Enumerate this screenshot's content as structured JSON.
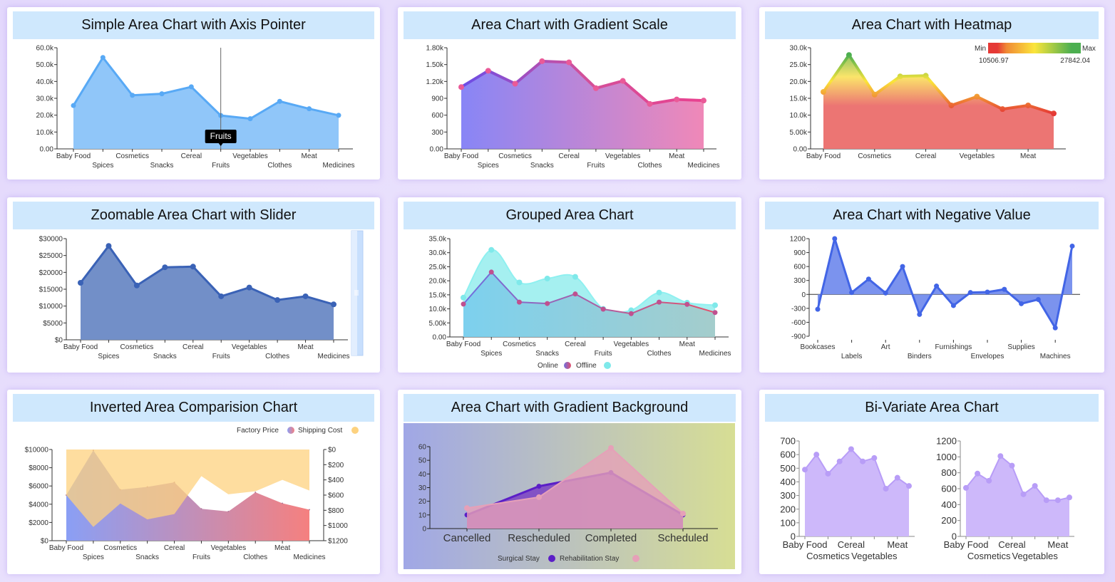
{
  "chart_data": [
    {
      "type": "area",
      "title": "Simple Area Chart with Axis Pointer",
      "categories": [
        "Baby Food",
        "Spices",
        "Cosmetics",
        "Snacks",
        "Cereal",
        "Fruits",
        "Vegetables",
        "Clothes",
        "Meat",
        "Medicines"
      ],
      "ylim": [
        0,
        60000
      ],
      "yticks": [
        "0.00",
        "10.0k",
        "20.0k",
        "30.0k",
        "40.0k",
        "50.0k",
        "60.0k"
      ],
      "series": [
        {
          "values": [
            25700,
            54200,
            31800,
            32700,
            36800,
            19800,
            17900,
            28200,
            23800,
            19900
          ]
        }
      ],
      "tooltip": "Fruits",
      "colors": {
        "fill": "#90c6f9",
        "line": "#58a9f5"
      }
    },
    {
      "type": "area",
      "title": "Area Chart with Gradient Scale",
      "categories": [
        "Baby Food",
        "Spices",
        "Cosmetics",
        "Snacks",
        "Cereal",
        "Fruits",
        "Vegetables",
        "Clothes",
        "Meat",
        "Medicines"
      ],
      "ylim": [
        0,
        1800
      ],
      "yticks": [
        "0.00",
        "300",
        "600",
        "900",
        "1.20k",
        "1.50k",
        "1.80k"
      ],
      "series": [
        {
          "values": [
            1100,
            1390,
            1160,
            1560,
            1540,
            1080,
            1210,
            800,
            880,
            860
          ]
        }
      ],
      "colors": {
        "from": "#7b78f5",
        "to": "#ee7bb0"
      }
    },
    {
      "type": "area",
      "title": "Area Chart with Heatmap",
      "categories": [
        "Baby Food",
        "",
        "Cosmetics",
        "",
        "Cereal",
        "",
        "Vegetables",
        "",
        "Meat",
        ""
      ],
      "ylim": [
        0,
        30000
      ],
      "yticks": [
        "0.00",
        "5.00k",
        "10.0k",
        "15.0k",
        "20.0k",
        "25.0k",
        "30.0k"
      ],
      "series": [
        {
          "values": [
            16900,
            27842.04,
            16100,
            21500,
            21700,
            12900,
            15500,
            11800,
            12900,
            10506.97
          ]
        }
      ],
      "visual_map": {
        "min_label": "Min",
        "max_label": "Max",
        "min": "10506.97",
        "max": "27842.04"
      },
      "colors": {
        "low": "#e53935",
        "mid": "#fbe53b",
        "high": "#4caf50",
        "fill": "#ec7573"
      }
    },
    {
      "type": "area",
      "title": "Zoomable Area Chart with Slider",
      "categories": [
        "Baby Food",
        "Spices",
        "Cosmetics",
        "Snacks",
        "Cereal",
        "Fruits",
        "Vegetables",
        "Clothes",
        "Meat",
        "Medicines"
      ],
      "ylim": [
        0,
        30000
      ],
      "yticks": [
        "$0",
        "$5000",
        "$10000",
        "$15000",
        "$20000",
        "$25000",
        "$30000"
      ],
      "series": [
        {
          "values": [
            16900,
            27842,
            16100,
            21500,
            21700,
            12900,
            15500,
            11800,
            12900,
            10507
          ]
        }
      ],
      "zoom_range": [
        0,
        100
      ],
      "colors": {
        "fill": "#728fc8",
        "line": "#3a62b6"
      }
    },
    {
      "type": "area",
      "title": "Grouped Area Chart",
      "categories": [
        "Baby Food",
        "Spices",
        "Cosmetics",
        "Snacks",
        "Cereal",
        "Fruits",
        "Vegetables",
        "Clothes",
        "Meat",
        "Medicines"
      ],
      "ylim": [
        0,
        35000
      ],
      "yticks": [
        "0.00",
        "5.00k",
        "10.0k",
        "15.0k",
        "20.0k",
        "25.0k",
        "30.0k",
        "35.0k"
      ],
      "series": [
        {
          "name": "Online",
          "values": [
            11700,
            23100,
            12400,
            11900,
            15300,
            9900,
            8300,
            12400,
            11600,
            8700
          ]
        },
        {
          "name": "Offline",
          "values": [
            14000,
            31000,
            19400,
            20800,
            21400,
            10000,
            9500,
            15800,
            12200,
            11300
          ]
        }
      ],
      "legend": "bottom",
      "colors": {
        "online_from": "#6e6fe0",
        "online_to": "#e5506b",
        "offline": "#7fe9ea"
      }
    },
    {
      "type": "area",
      "title": "Area Chart with Negative Value",
      "categories": [
        "Bookcases",
        "",
        "Labels",
        "",
        "Art",
        "",
        "Binders",
        "",
        "Furnishings",
        "",
        "Envelopes",
        "",
        "Supplies",
        "",
        "Machines",
        ""
      ],
      "ylim": [
        -900,
        1200
      ],
      "yticks": [
        "-900",
        "-600",
        "-300",
        "0",
        "300",
        "600",
        "900",
        "1200"
      ],
      "series": [
        {
          "values": [
            -320,
            1200,
            40,
            330,
            30,
            600,
            -430,
            180,
            -240,
            40,
            50,
            110,
            -200,
            -110,
            -720,
            1040
          ]
        }
      ],
      "colors": {
        "fill": "#7b93ee",
        "line": "#4265e6"
      }
    },
    {
      "type": "area",
      "title": "Inverted Area Comparision Chart",
      "categories": [
        "Baby Food",
        "Spices",
        "Cosmetics",
        "Snacks",
        "Cereal",
        "Fruits",
        "Vegetables",
        "Clothes",
        "Meat",
        "Medicines"
      ],
      "ylim": [
        0,
        10000
      ],
      "yticks": [
        "$0",
        "$2000",
        "$4000",
        "$6000",
        "$8000",
        "$10000"
      ],
      "y2lim": [
        0,
        1200
      ],
      "y2inverted": true,
      "y2ticks": [
        "$0",
        "$200",
        "$400",
        "$600",
        "$800",
        "$1000",
        "$1200"
      ],
      "series": [
        {
          "name": "Factory Price",
          "values": [
            5000,
            9900,
            5600,
            5900,
            6400,
            3500,
            3200,
            5300,
            4100,
            3400
          ]
        },
        {
          "name": "Shipping Cost",
          "values": [
            600,
            1020,
            710,
            920,
            850,
            350,
            590,
            550,
            400,
            540
          ]
        }
      ],
      "legend": "top-right",
      "colors": {
        "factory_from": "#8a9ff5",
        "factory_to": "#f5807f",
        "shipping": "#fdd27f"
      }
    },
    {
      "type": "area",
      "title": "Area Chart with Gradient Background",
      "categories": [
        "Cancelled",
        "Rescheduled",
        "Completed",
        "Scheduled"
      ],
      "ylim": [
        0,
        60
      ],
      "yticks": [
        "0",
        "10",
        "20",
        "30",
        "40",
        "50",
        "60"
      ],
      "series": [
        {
          "name": "Surgical Stay",
          "values": [
            10,
            31,
            41,
            10
          ]
        },
        {
          "name": "Rehabilitation Stay",
          "values": [
            15,
            23,
            59,
            11
          ]
        }
      ],
      "legend": "bottom",
      "colors": {
        "bg_from": "#a0a7e6",
        "bg_to": "#d7de94",
        "surgical": "#5b1ec7",
        "rehab": "#e6a0b8"
      }
    },
    {
      "type": "area",
      "title": "Bi-Variate Area Chart",
      "categories": [
        "Baby Food",
        "",
        "Cosmetics",
        "",
        "Cereal",
        "",
        "Vegetables",
        "",
        "Meat",
        ""
      ],
      "ylim": [
        0,
        700
      ],
      "yticks": [
        "0",
        "100",
        "200",
        "300",
        "400",
        "500",
        "600",
        "700"
      ],
      "series": [
        {
          "values": [
            490,
            600,
            460,
            550,
            640,
            550,
            575,
            350,
            430,
            370
          ]
        }
      ],
      "colors": {
        "fill": "#cdb8fa",
        "line": "#b89df7"
      }
    },
    {
      "type": "area",
      "title": "",
      "categories": [
        "Baby Food",
        "",
        "Cosmetics",
        "",
        "Cereal",
        "",
        "Vegetables",
        "",
        "Meat",
        ""
      ],
      "ylim": [
        0,
        1200
      ],
      "yticks": [
        "0",
        "200",
        "400",
        "600",
        "800",
        "1000",
        "1200"
      ],
      "series": [
        {
          "values": [
            610,
            790,
            700,
            1010,
            890,
            530,
            635,
            455,
            455,
            490
          ]
        }
      ],
      "colors": {
        "fill": "#cdb8fa",
        "line": "#b89df7"
      }
    }
  ]
}
